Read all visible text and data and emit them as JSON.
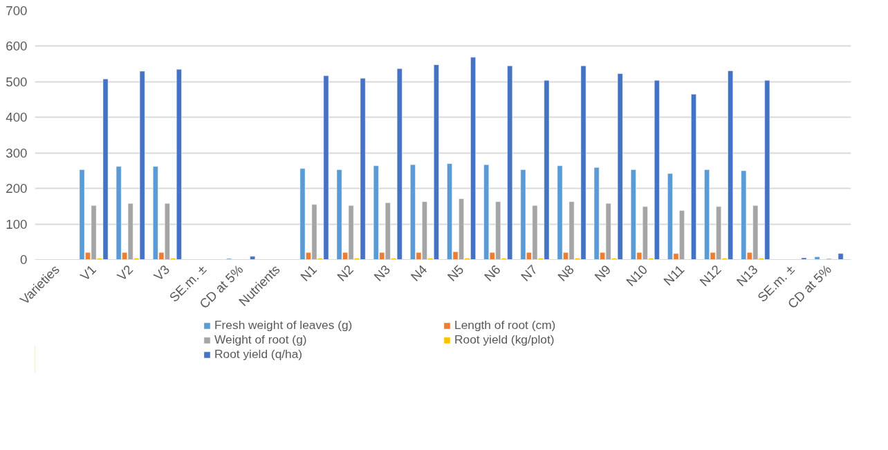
{
  "chart_data": {
    "type": "bar",
    "categories": [
      "Varieties",
      "V1",
      "V2",
      "V3",
      "SE.m. ±",
      "CD at 5%",
      "Nutrients",
      "N1",
      "N2",
      "N3",
      "N4",
      "N5",
      "N6",
      "N7",
      "N8",
      "N9",
      "N10",
      "N11",
      "N12",
      "N13",
      "SE.m. ±",
      "CD at 5%"
    ],
    "series": [
      {
        "name": "Fresh weight of leaves (g)",
        "color": "#5b9bd5",
        "values": [
          null,
          253,
          262,
          262,
          null,
          3,
          null,
          256,
          253,
          264,
          267,
          270,
          267,
          253,
          264,
          259,
          253,
          242,
          253,
          250,
          null,
          8
        ]
      },
      {
        "name": "Length of root (cm)",
        "color": "#ed7d31",
        "values": [
          null,
          20,
          20,
          20,
          null,
          null,
          null,
          20,
          20,
          20,
          20,
          22,
          20,
          20,
          20,
          20,
          20,
          17,
          20,
          20,
          null,
          null
        ]
      },
      {
        "name": "Weight of root (g)",
        "color": "#a5a5a5",
        "values": [
          null,
          152,
          158,
          158,
          null,
          null,
          null,
          155,
          152,
          160,
          163,
          171,
          163,
          152,
          163,
          158,
          149,
          138,
          149,
          152,
          null,
          3
        ]
      },
      {
        "name": "Root yield (kg/plot)",
        "color": "#ffc000",
        "values": [
          null,
          4,
          4,
          4,
          null,
          null,
          null,
          4,
          4,
          4,
          4,
          4,
          4,
          4,
          4,
          4,
          4,
          null,
          4,
          4,
          null,
          null
        ]
      },
      {
        "name": "Root yield (q/ha)",
        "color": "#4472c4",
        "values": [
          null,
          508,
          530,
          535,
          null,
          9,
          null,
          517,
          510,
          537,
          548,
          569,
          545,
          504,
          545,
          523,
          504,
          465,
          531,
          504,
          5,
          17
        ]
      }
    ],
    "ylim": [
      0,
      700
    ],
    "yticks": [
      0,
      100,
      200,
      300,
      400,
      500,
      600,
      700
    ],
    "grid": "y",
    "legend": "bottom"
  }
}
